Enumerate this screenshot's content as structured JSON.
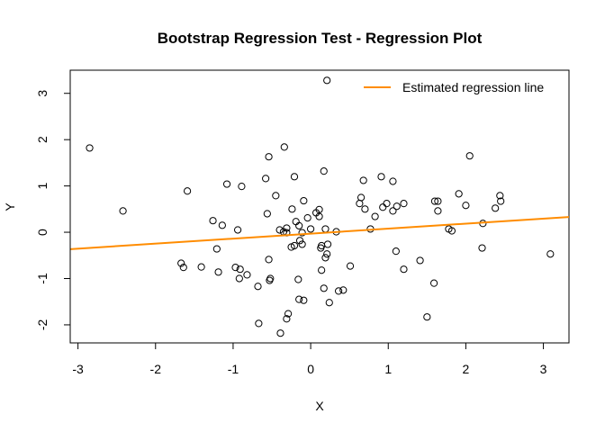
{
  "chart_data": {
    "type": "scatter",
    "title": "Bootstrap Regression Test - Regression Plot",
    "xlabel": "X",
    "ylabel": "Y",
    "xlim": [
      -3.1,
      3.33
    ],
    "ylim": [
      -2.39,
      3.5
    ],
    "xticks": [
      -3,
      -2,
      -1,
      0,
      1,
      2,
      3
    ],
    "yticks": [
      -2,
      -1,
      0,
      1,
      2,
      3
    ],
    "grid": false,
    "legend": {
      "position": "top-right",
      "entries": [
        {
          "label": "Estimated regression line",
          "color": "#FF8C00"
        }
      ]
    },
    "regression_line": {
      "intercept": -0.03,
      "slope": 0.108,
      "color": "#FF8C00"
    },
    "point_color": "#000000",
    "points": [
      [
        -2.85,
        1.82
      ],
      [
        -2.42,
        0.46
      ],
      [
        -1.59,
        0.89
      ],
      [
        -1.08,
        1.04
      ],
      [
        -0.89,
        0.99
      ],
      [
        -0.34,
        1.84
      ],
      [
        -0.54,
        1.63
      ],
      [
        -0.58,
        1.16
      ],
      [
        -0.21,
        1.2
      ],
      [
        -0.45,
        0.79
      ],
      [
        -0.09,
        0.68
      ],
      [
        -0.24,
        0.5
      ],
      [
        -0.56,
        0.4
      ],
      [
        0.07,
        0.42
      ],
      [
        0.11,
        0.49
      ],
      [
        0.11,
        0.34
      ],
      [
        -0.04,
        0.31
      ],
      [
        -0.19,
        0.23
      ],
      [
        -0.15,
        0.14
      ],
      [
        0.0,
        0.07
      ],
      [
        -0.4,
        0.05
      ],
      [
        -0.31,
        0.09
      ],
      [
        -0.35,
        0.01
      ],
      [
        -0.31,
        -0.01
      ],
      [
        -0.11,
        -0.01
      ],
      [
        -0.14,
        -0.18
      ],
      [
        -0.11,
        -0.26
      ],
      [
        -0.25,
        -0.32
      ],
      [
        -0.21,
        -0.29
      ],
      [
        -1.26,
        0.25
      ],
      [
        -1.14,
        0.15
      ],
      [
        -0.94,
        0.05
      ],
      [
        -1.21,
        -0.36
      ],
      [
        -1.67,
        -0.67
      ],
      [
        -1.64,
        -0.76
      ],
      [
        -1.41,
        -0.75
      ],
      [
        -1.19,
        -0.86
      ],
      [
        -0.97,
        -0.76
      ],
      [
        -0.91,
        -0.8
      ],
      [
        -0.92,
        -1.0
      ],
      [
        -0.82,
        -0.92
      ],
      [
        -0.54,
        -0.59
      ],
      [
        -0.68,
        -1.17
      ],
      [
        -0.53,
        -1.04
      ],
      [
        -0.52,
        -1.0
      ],
      [
        -0.16,
        -1.02
      ],
      [
        -0.15,
        -1.45
      ],
      [
        -0.09,
        -1.47
      ],
      [
        -0.29,
        -1.76
      ],
      [
        -0.31,
        -1.87
      ],
      [
        -0.67,
        -1.97
      ],
      [
        -0.39,
        -2.18
      ],
      [
        0.21,
        3.28
      ],
      [
        0.17,
        1.32
      ],
      [
        0.68,
        1.12
      ],
      [
        0.91,
        1.2
      ],
      [
        1.06,
        1.1
      ],
      [
        2.05,
        1.65
      ],
      [
        0.65,
        0.75
      ],
      [
        0.63,
        0.62
      ],
      [
        0.7,
        0.5
      ],
      [
        0.98,
        0.62
      ],
      [
        0.93,
        0.54
      ],
      [
        1.11,
        0.56
      ],
      [
        1.06,
        0.46
      ],
      [
        1.2,
        0.62
      ],
      [
        0.83,
        0.34
      ],
      [
        0.77,
        0.07
      ],
      [
        1.6,
        0.67
      ],
      [
        1.64,
        0.67
      ],
      [
        1.64,
        0.46
      ],
      [
        1.91,
        0.83
      ],
      [
        2.0,
        0.58
      ],
      [
        1.78,
        0.07
      ],
      [
        1.82,
        0.03
      ],
      [
        2.22,
        0.19
      ],
      [
        2.38,
        0.52
      ],
      [
        2.44,
        0.79
      ],
      [
        2.45,
        0.67
      ],
      [
        2.21,
        -0.34
      ],
      [
        3.09,
        -0.47
      ],
      [
        0.19,
        0.07
      ],
      [
        0.33,
        0.01
      ],
      [
        0.14,
        -0.29
      ],
      [
        0.13,
        -0.34
      ],
      [
        0.22,
        -0.26
      ],
      [
        0.21,
        -0.47
      ],
      [
        0.19,
        -0.55
      ],
      [
        0.14,
        -0.82
      ],
      [
        0.51,
        -0.73
      ],
      [
        1.1,
        -0.41
      ],
      [
        1.2,
        -0.8
      ],
      [
        1.41,
        -0.61
      ],
      [
        1.59,
        -1.1
      ],
      [
        0.17,
        -1.21
      ],
      [
        0.36,
        -1.27
      ],
      [
        0.42,
        -1.25
      ],
      [
        0.24,
        -1.52
      ],
      [
        1.5,
        -1.83
      ]
    ]
  }
}
